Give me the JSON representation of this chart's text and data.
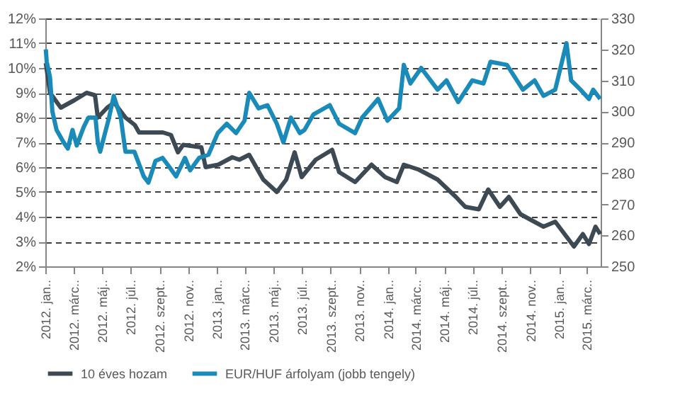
{
  "chart_data": {
    "type": "line",
    "xlim": [
      "2012-01-01",
      "2015-03-31"
    ],
    "xticks": [
      {
        "value": "2012-01-01",
        "label": "2012. jan.."
      },
      {
        "value": "2012-03-01",
        "label": "2012. márc.."
      },
      {
        "value": "2012-05-01",
        "label": "2012. máj.."
      },
      {
        "value": "2012-07-01",
        "label": "2012. júl.."
      },
      {
        "value": "2012-09-01",
        "label": "2012. szept.."
      },
      {
        "value": "2012-11-01",
        "label": "2012. nov.."
      },
      {
        "value": "2013-01-01",
        "label": "2013. jan.."
      },
      {
        "value": "2013-03-01",
        "label": "2013. márc.."
      },
      {
        "value": "2013-05-01",
        "label": "2013. máj.."
      },
      {
        "value": "2013-07-01",
        "label": "2013. júl.."
      },
      {
        "value": "2013-09-01",
        "label": "2013. szept.."
      },
      {
        "value": "2013-11-01",
        "label": "2013. nov.."
      },
      {
        "value": "2014-01-01",
        "label": "2014. jan.."
      },
      {
        "value": "2014-03-01",
        "label": "2014. márc.."
      },
      {
        "value": "2014-05-01",
        "label": "2014. máj.."
      },
      {
        "value": "2014-07-01",
        "label": "2014. júl.."
      },
      {
        "value": "2014-09-01",
        "label": "2014. szept.."
      },
      {
        "value": "2014-11-01",
        "label": "2014. nov.."
      },
      {
        "value": "2015-01-01",
        "label": "2015. jan.."
      },
      {
        "value": "2015-03-01",
        "label": "2015. márc.."
      }
    ],
    "ylim": [
      2,
      12
    ],
    "yticks": [
      {
        "value": 2,
        "label": "2%"
      },
      {
        "value": 3,
        "label": "3%"
      },
      {
        "value": 4,
        "label": "4%"
      },
      {
        "value": 5,
        "label": "5%"
      },
      {
        "value": 6,
        "label": "6%"
      },
      {
        "value": 7,
        "label": "7%"
      },
      {
        "value": 8,
        "label": "8%"
      },
      {
        "value": 9,
        "label": "9%"
      },
      {
        "value": 10,
        "label": "10%"
      },
      {
        "value": 11,
        "label": "11%"
      },
      {
        "value": 12,
        "label": "12%"
      }
    ],
    "y2lim": [
      250,
      330
    ],
    "y2ticks": [
      250,
      260,
      270,
      280,
      290,
      300,
      310,
      320,
      330
    ],
    "grid": "y",
    "legend": "bottom",
    "marker": "none",
    "line_style": "solid",
    "series": [
      {
        "name": "10 éves hozam",
        "color": "#3d4a53",
        "x": [
          "2012-01-02",
          "2012-01-11",
          "2012-02-03",
          "2012-03-03",
          "2012-03-29",
          "2012-04-16",
          "2012-04-22",
          "2012-05-12",
          "2012-05-27",
          "2012-06-20",
          "2012-07-10",
          "2012-07-19",
          "2012-09-08",
          "2012-09-25",
          "2012-10-10",
          "2012-10-21",
          "2012-11-29",
          "2012-12-08",
          "2013-01-04",
          "2013-02-03",
          "2013-02-18",
          "2013-03-11",
          "2013-04-10",
          "2013-05-09",
          "2013-05-29",
          "2013-06-16",
          "2013-07-01",
          "2013-07-31",
          "2013-09-04",
          "2013-09-19",
          "2013-10-23",
          "2013-11-27",
          "2013-12-26",
          "2014-01-20",
          "2014-02-04",
          "2014-03-08",
          "2014-04-17",
          "2014-05-26",
          "2014-06-15",
          "2014-07-14",
          "2014-08-03",
          "2014-08-28",
          "2014-09-16",
          "2014-10-11",
          "2014-11-29",
          "2014-12-24",
          "2015-02-02",
          "2015-02-21",
          "2015-03-06",
          "2015-03-20",
          "2015-03-30"
        ],
        "values": [
          10.2,
          9.0,
          8.4,
          8.7,
          9.0,
          8.9,
          8.0,
          8.4,
          8.6,
          8.0,
          7.7,
          7.4,
          7.4,
          7.3,
          6.6,
          6.9,
          6.8,
          6.0,
          6.1,
          6.4,
          6.3,
          6.5,
          5.5,
          5.0,
          5.5,
          6.6,
          5.6,
          6.3,
          6.7,
          5.8,
          5.4,
          6.1,
          5.6,
          5.4,
          6.1,
          5.9,
          5.5,
          4.8,
          4.4,
          4.3,
          5.1,
          4.4,
          4.8,
          4.1,
          3.6,
          3.8,
          2.8,
          3.3,
          2.9,
          3.6,
          3.3
        ]
      },
      {
        "name": "EUR/HUF árfolyam (jobb tengely)",
        "color": "#1a8ab8",
        "axis": "y2",
        "x": [
          "2012-01-02",
          "2012-01-04",
          "2012-01-11",
          "2012-01-16",
          "2012-01-25",
          "2012-02-09",
          "2012-02-18",
          "2012-02-28",
          "2012-03-08",
          "2012-03-23",
          "2012-04-02",
          "2012-04-17",
          "2012-04-22",
          "2012-04-27",
          "2012-05-16",
          "2012-05-26",
          "2012-06-10",
          "2012-06-20",
          "2012-07-09",
          "2012-07-29",
          "2012-08-08",
          "2012-08-23",
          "2012-09-07",
          "2012-09-22",
          "2012-10-06",
          "2012-10-25",
          "2012-11-05",
          "2012-11-24",
          "2012-12-14",
          "2013-01-03",
          "2013-01-22",
          "2013-02-11",
          "2013-03-01",
          "2013-03-11",
          "2013-03-31",
          "2013-04-19",
          "2013-05-09",
          "2013-05-23",
          "2013-06-08",
          "2013-06-27",
          "2013-07-07",
          "2013-07-26",
          "2013-08-30",
          "2013-09-19",
          "2013-10-23",
          "2013-11-07",
          "2013-12-11",
          "2013-12-31",
          "2014-01-25",
          "2014-02-04",
          "2014-02-18",
          "2014-03-13",
          "2014-04-17",
          "2014-05-06",
          "2014-05-31",
          "2014-06-30",
          "2014-07-24",
          "2014-08-08",
          "2014-09-12",
          "2014-10-16",
          "2014-11-10",
          "2014-11-29",
          "2014-12-24",
          "2015-01-17",
          "2015-01-27",
          "2015-02-16",
          "2015-03-06",
          "2015-03-15",
          "2015-03-30"
        ],
        "values": [
          320,
          316,
          311,
          300,
          294,
          290,
          288,
          294,
          289,
          295,
          298,
          298,
          290,
          287,
          298,
          305,
          298,
          287,
          287,
          279,
          277,
          284,
          285,
          282,
          279,
          285,
          281,
          285,
          286,
          293,
          296,
          293,
          297,
          306,
          301,
          302,
          296,
          290,
          298,
          293,
          294,
          299,
          302,
          296,
          293,
          298,
          304,
          297,
          301,
          315,
          309,
          314,
          307,
          310,
          303,
          310,
          309,
          316,
          315,
          307,
          310,
          305,
          307,
          322,
          310,
          307,
          304,
          307,
          304
        ]
      }
    ]
  }
}
